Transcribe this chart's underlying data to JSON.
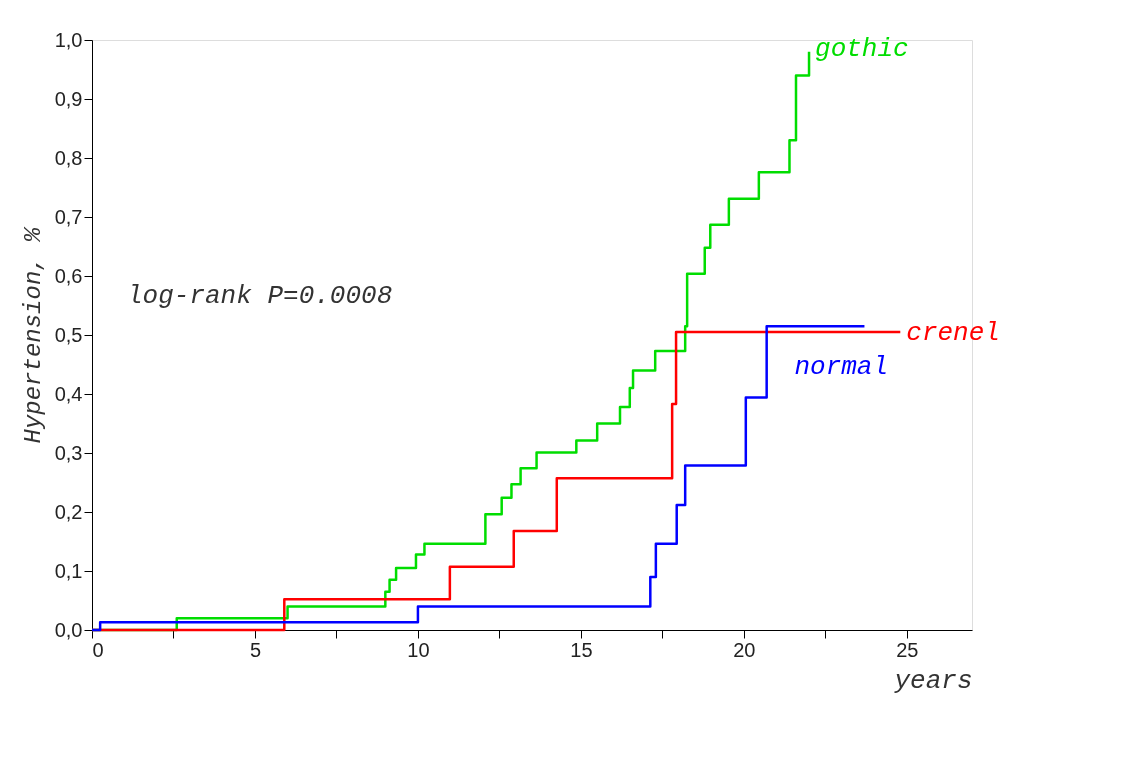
{
  "chart_data": {
    "type": "step",
    "xlabel": "years",
    "ylabel": "Hypertension, %",
    "annotations": [
      "log-rank P=0.0008"
    ],
    "xlim": [
      0,
      27
    ],
    "xticks": [
      0,
      {
        "value": 2.5,
        "label": null
      },
      5,
      {
        "value": 7.5,
        "label": null
      },
      10,
      {
        "value": 12.5,
        "label": null
      },
      15,
      {
        "value": 17.5,
        "label": null
      },
      20,
      {
        "value": 22.5,
        "label": null
      },
      25
    ],
    "ylim": [
      0,
      1
    ],
    "yticks": [
      {
        "value": 0,
        "label": "0,0"
      },
      {
        "value": 0.1,
        "label": "0,1"
      },
      {
        "value": 0.2,
        "label": "0,2"
      },
      {
        "value": 0.3,
        "label": "0,3"
      },
      {
        "value": 0.4,
        "label": "0,4"
      },
      {
        "value": 0.5,
        "label": "0,5"
      },
      {
        "value": 0.6,
        "label": "0,6"
      },
      {
        "value": 0.7,
        "label": "0,7"
      },
      {
        "value": 0.8,
        "label": "0,8"
      },
      {
        "value": 0.9,
        "label": "0,9"
      },
      {
        "value": 1,
        "label": "1,0"
      }
    ],
    "grid": false,
    "legend": false,
    "marker": "none",
    "line_style": "solid",
    "series": [
      {
        "name": "gothic",
        "color": "#00dd00",
        "x": [
          0,
          2.6,
          6.0,
          9.0,
          9.13,
          9.33,
          9.94,
          10.2,
          12.07,
          12.57,
          12.87,
          13.15,
          13.64,
          14.86,
          15.5,
          16.2,
          16.5,
          16.6,
          17.28,
          18.2,
          18.26,
          18.8,
          18.97,
          19.54,
          20.46,
          21.4,
          21.6,
          22.0
        ],
        "values": [
          0,
          0.02,
          0.04,
          0.065,
          0.085,
          0.105,
          0.128,
          0.146,
          0.196,
          0.224,
          0.247,
          0.274,
          0.301,
          0.321,
          0.35,
          0.378,
          0.41,
          0.44,
          0.473,
          0.515,
          0.604,
          0.648,
          0.687,
          0.731,
          0.776,
          0.83,
          0.94,
          0.98
        ]
      },
      {
        "name": "crenel",
        "color": "#ff0000",
        "x": [
          0,
          5.9,
          10.98,
          12.94,
          14.26,
          17.8,
          17.92,
          24.8
        ],
        "values": [
          0,
          0.052,
          0.107,
          0.168,
          0.257,
          0.383,
          0.505,
          0.505
        ]
      },
      {
        "name": "normal",
        "color": "#0000ff",
        "x": [
          0,
          0.25,
          10.0,
          17.13,
          17.3,
          17.94,
          18.2,
          20.06,
          20.7,
          23.7
        ],
        "values": [
          0,
          0.013,
          0.04,
          0.09,
          0.146,
          0.212,
          0.279,
          0.394,
          0.515,
          0.515
        ]
      }
    ]
  }
}
